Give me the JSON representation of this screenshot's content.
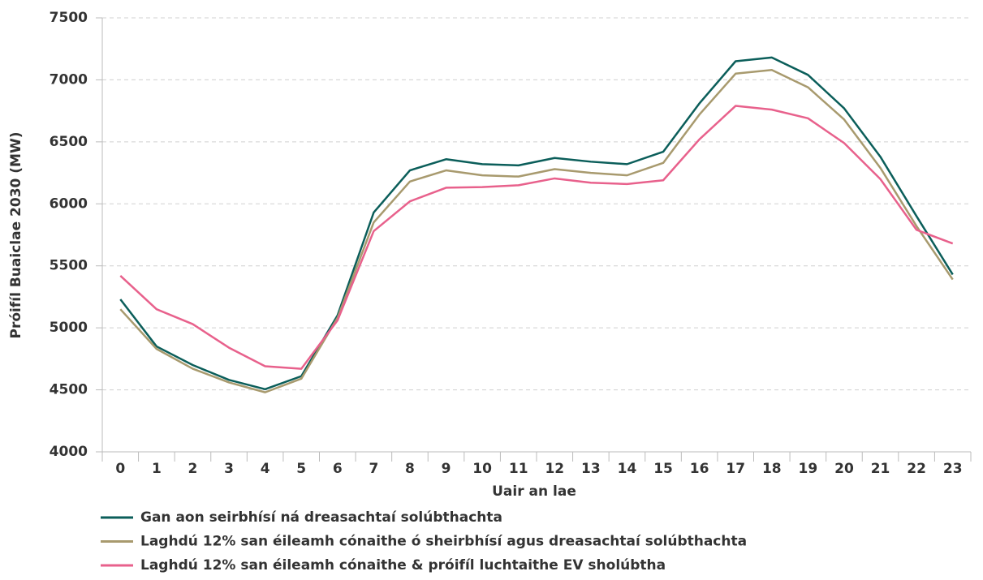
{
  "chart_data": {
    "type": "line",
    "xlabel": "Uair an lae",
    "ylabel": "Próifíl Buaiclae 2030 (MW)",
    "categories": [
      "0",
      "1",
      "2",
      "3",
      "4",
      "5",
      "6",
      "7",
      "8",
      "9",
      "10",
      "11",
      "12",
      "13",
      "14",
      "15",
      "16",
      "17",
      "18",
      "19",
      "20",
      "21",
      "22",
      "23"
    ],
    "series": [
      {
        "name": "Gan aon seirbhísí ná dreasachtaí solúbthachta",
        "color": "#0b5e5a",
        "values": [
          5230,
          4850,
          4700,
          4580,
          4505,
          4610,
          5100,
          5930,
          6270,
          6360,
          6320,
          6310,
          6370,
          6340,
          6320,
          6420,
          6810,
          7150,
          7180,
          7040,
          6770,
          6380,
          5900,
          5430
        ]
      },
      {
        "name": "Laghdú 12% san éileamh cónaithe ó sheirbhísí agus dreasachtaí solúbthachta",
        "color": "#a89a6e",
        "values": [
          5150,
          4830,
          4670,
          4560,
          4480,
          4590,
          5080,
          5850,
          6180,
          6270,
          6230,
          6220,
          6280,
          6250,
          6230,
          6330,
          6720,
          7050,
          7080,
          6940,
          6680,
          6290,
          5820,
          5390
        ]
      },
      {
        "name": "Laghdú 12% san éileamh cónaithe & próifíl luchtaithe EV sholúbtha",
        "color": "#e8618c",
        "values": [
          5420,
          5150,
          5030,
          4840,
          4690,
          4670,
          5060,
          5780,
          6020,
          6130,
          6135,
          6150,
          6205,
          6170,
          6160,
          6190,
          6520,
          6790,
          6760,
          6690,
          6490,
          6200,
          5790,
          5680
        ]
      }
    ],
    "ylim": [
      4000,
      7500
    ],
    "yticks": [
      4000,
      4500,
      5000,
      5500,
      6000,
      6500,
      7000,
      7500
    ],
    "grid": true,
    "legend": "bottom"
  }
}
